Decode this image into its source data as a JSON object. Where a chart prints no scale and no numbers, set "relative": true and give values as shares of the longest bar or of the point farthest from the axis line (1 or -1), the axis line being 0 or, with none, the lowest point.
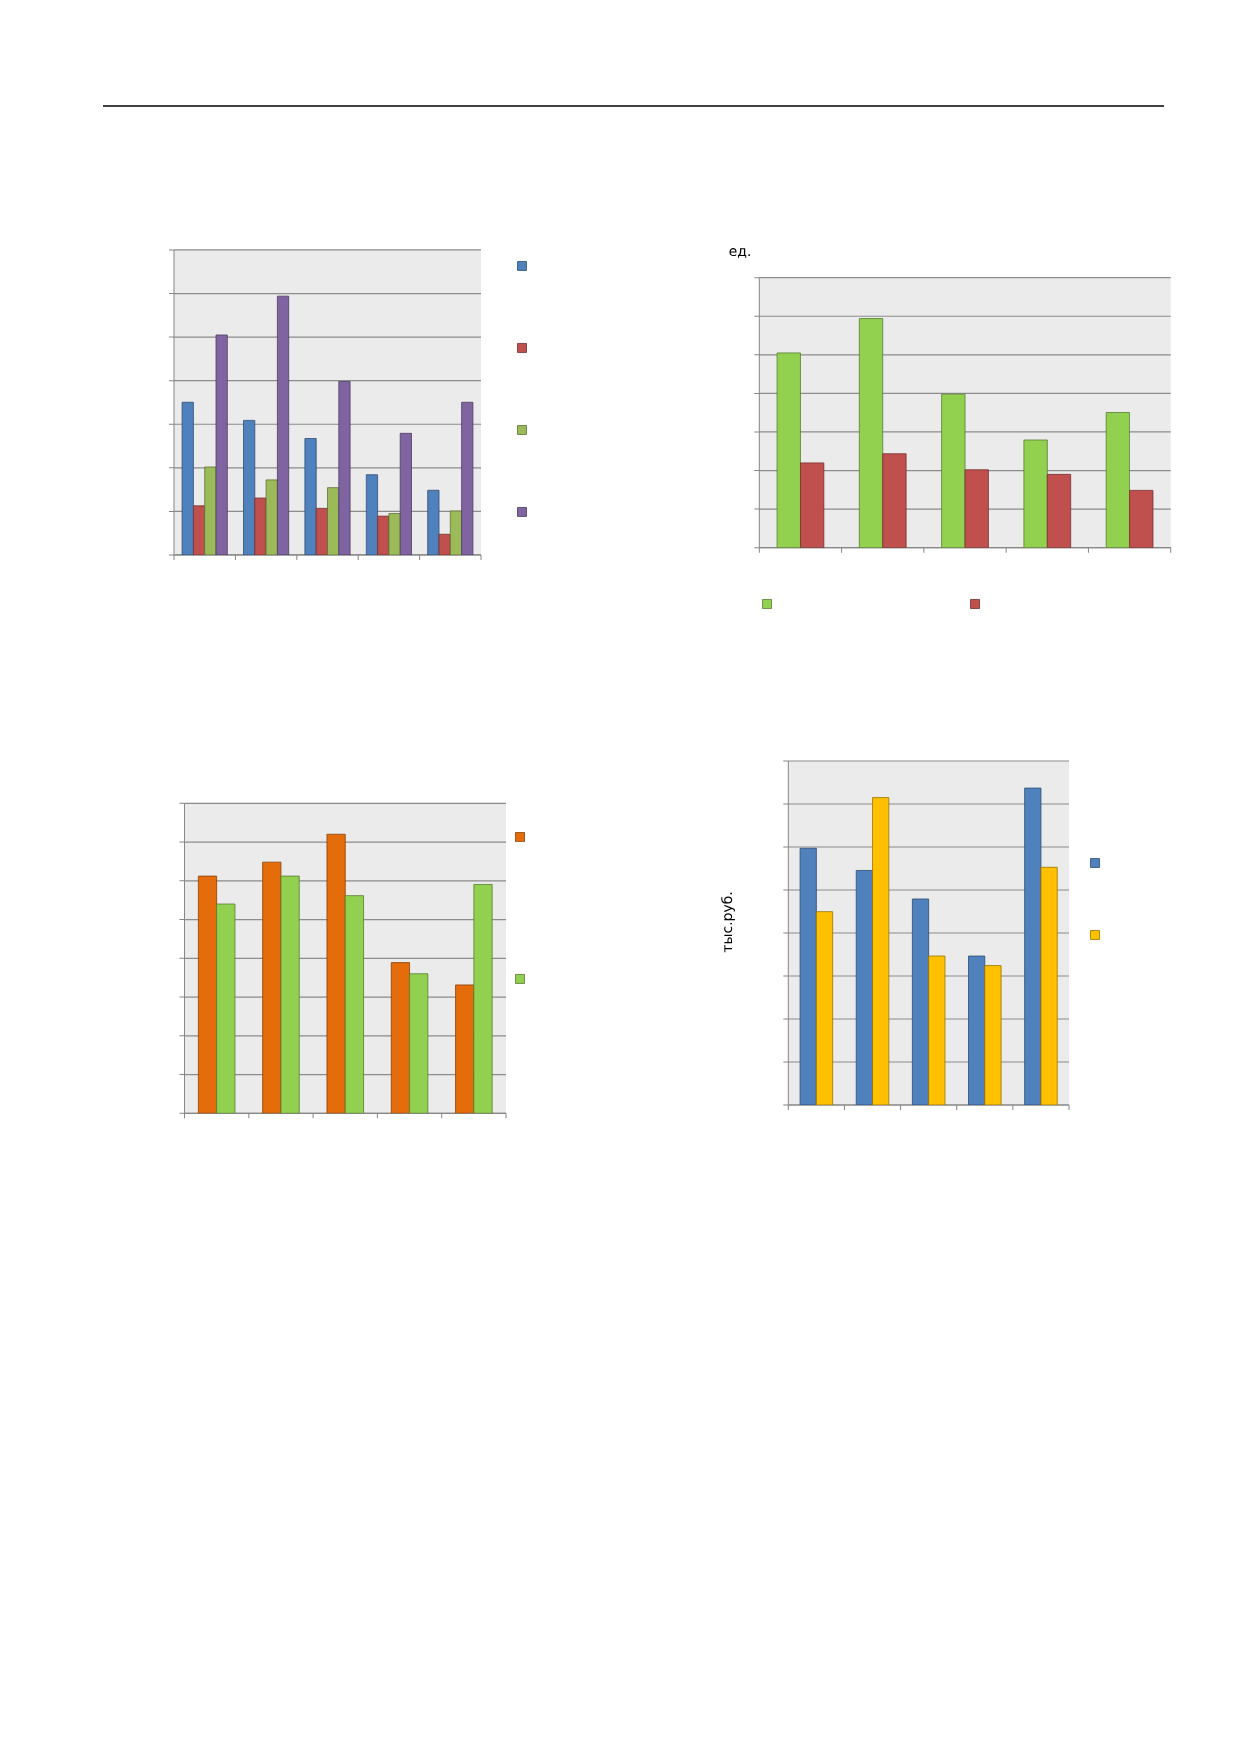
{
  "chart_data": [
    {
      "type": "bar",
      "categories": [
        null,
        null,
        null,
        null,
        null
      ],
      "relative": true,
      "grid": "y",
      "series": [
        {
          "color": "#4f81bd",
          "values": [
            0.59,
            0.52,
            0.45,
            0.31,
            0.25
          ]
        },
        {
          "color": "#c0504d",
          "values": [
            0.19,
            0.22,
            0.18,
            0.15,
            0.08
          ]
        },
        {
          "color": "#9bbb59",
          "values": [
            0.34,
            0.29,
            0.26,
            0.16,
            0.17
          ]
        },
        {
          "color": "#8064a2",
          "values": [
            0.85,
            1,
            0.67,
            0.47,
            0.59
          ]
        }
      ]
    },
    {
      "type": "bar",
      "ylabel": "ед.",
      "categories": [
        null,
        null,
        null,
        null,
        null
      ],
      "relative": true,
      "grid": "y",
      "series": [
        {
          "color": "#92d050",
          "values": [
            0.85,
            1,
            0.67,
            0.47,
            0.59
          ]
        },
        {
          "color": "#c0504d",
          "values": [
            0.37,
            0.41,
            0.34,
            0.32,
            0.25
          ]
        }
      ]
    },
    {
      "type": "bar",
      "categories": [
        null,
        null,
        null,
        null,
        null
      ],
      "relative": true,
      "grid": "y",
      "series": [
        {
          "color": "#e46c0a",
          "values": [
            0.85,
            0.9,
            1,
            0.54,
            0.46
          ]
        },
        {
          "color": "#92d050",
          "values": [
            0.75,
            0.85,
            0.78,
            0.5,
            0.82
          ]
        }
      ]
    },
    {
      "type": "bar",
      "ylabel": "тыс.руб.",
      "categories": [
        null,
        null,
        null,
        null,
        null
      ],
      "relative": true,
      "grid": "y",
      "series": [
        {
          "color": "#4f81bd",
          "values": [
            0.81,
            0.74,
            0.65,
            0.47,
            1
          ]
        },
        {
          "color": "#ffc000",
          "values": [
            0.61,
            0.97,
            0.47,
            0.44,
            0.75
          ]
        }
      ]
    }
  ]
}
